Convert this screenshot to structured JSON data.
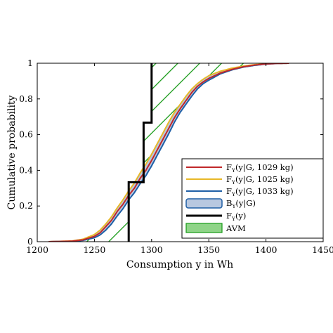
{
  "chart_data": {
    "type": "line",
    "title": "",
    "xlabel": "Consumption y in Wh",
    "ylabel": "Cumulative probability",
    "xlim": [
      1200,
      1450
    ],
    "ylim": [
      0,
      1
    ],
    "xticks": [
      "1200",
      "1250",
      "1300",
      "1350",
      "1400",
      "1450"
    ],
    "yticks": [
      "0",
      "0.2",
      "0.4",
      "0.6",
      "0.8",
      "1"
    ],
    "grid": false,
    "legend_position": "bottom-right",
    "series": [
      {
        "name": "F_Y(y|G, 1029 kg)",
        "color": "#c0282a",
        "x": [
          1210,
          1230,
          1240,
          1250,
          1255,
          1260,
          1265,
          1270,
          1275,
          1280,
          1285,
          1290,
          1295,
          1300,
          1305,
          1310,
          1315,
          1320,
          1325,
          1330,
          1335,
          1340,
          1345,
          1350,
          1360,
          1370,
          1380,
          1390,
          1400,
          1410,
          1420
        ],
        "y": [
          0,
          0.003,
          0.01,
          0.03,
          0.05,
          0.085,
          0.12,
          0.17,
          0.21,
          0.26,
          0.3,
          0.355,
          0.4,
          0.455,
          0.515,
          0.575,
          0.635,
          0.695,
          0.745,
          0.79,
          0.835,
          0.87,
          0.895,
          0.915,
          0.945,
          0.965,
          0.98,
          0.99,
          0.996,
          0.999,
          1.0
        ]
      },
      {
        "name": "F_Y(y|G, 1025 kg)",
        "color": "#e8b828",
        "x": [
          1210,
          1230,
          1240,
          1250,
          1255,
          1260,
          1265,
          1270,
          1275,
          1280,
          1285,
          1290,
          1295,
          1300,
          1305,
          1310,
          1315,
          1320,
          1325,
          1330,
          1335,
          1340,
          1345,
          1350,
          1360,
          1370,
          1380,
          1390,
          1400,
          1410,
          1420
        ],
        "y": [
          0,
          0.004,
          0.014,
          0.04,
          0.065,
          0.1,
          0.14,
          0.19,
          0.235,
          0.285,
          0.33,
          0.385,
          0.435,
          0.49,
          0.55,
          0.61,
          0.67,
          0.725,
          0.77,
          0.815,
          0.855,
          0.885,
          0.91,
          0.93,
          0.955,
          0.972,
          0.984,
          0.992,
          0.997,
          0.999,
          1.0
        ]
      },
      {
        "name": "F_Y(y|G, 1033 kg)",
        "color": "#1f5fa6",
        "x": [
          1210,
          1230,
          1240,
          1250,
          1255,
          1260,
          1265,
          1270,
          1275,
          1280,
          1285,
          1290,
          1295,
          1300,
          1305,
          1310,
          1315,
          1320,
          1325,
          1330,
          1335,
          1340,
          1345,
          1350,
          1360,
          1370,
          1380,
          1390,
          1400,
          1410,
          1420
        ],
        "y": [
          0,
          0.002,
          0.007,
          0.022,
          0.038,
          0.065,
          0.1,
          0.145,
          0.185,
          0.235,
          0.275,
          0.325,
          0.37,
          0.425,
          0.485,
          0.545,
          0.605,
          0.67,
          0.725,
          0.77,
          0.815,
          0.855,
          0.885,
          0.905,
          0.94,
          0.962,
          0.978,
          0.988,
          0.995,
          0.999,
          1.0
        ]
      },
      {
        "name": "F_Y(y)",
        "color": "#000000",
        "step": true,
        "x": [
          1280,
          1280,
          1293,
          1293,
          1300,
          1300
        ],
        "y": [
          0,
          0.333,
          0.333,
          0.667,
          0.667,
          1.0
        ]
      }
    ],
    "band": {
      "name": "B_Y(y|G)",
      "fill": "#b8c8e0",
      "stroke": "#1f5fa6"
    },
    "hatched_area": {
      "name": "AVM",
      "fill": "#8fd488",
      "stroke": "#169a16"
    }
  }
}
